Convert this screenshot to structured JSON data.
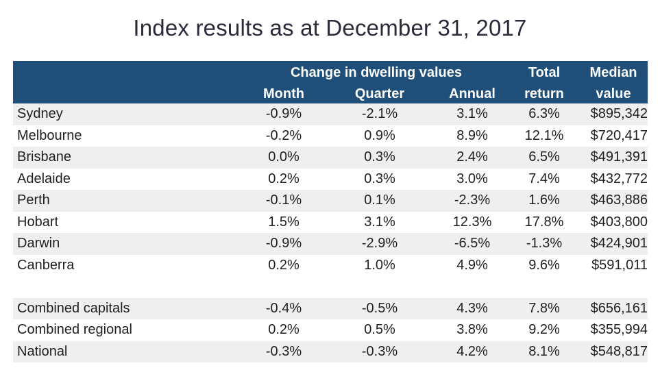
{
  "title": "Index results as at December 31, 2017",
  "header": {
    "group": "Change in dwelling values",
    "month": "Month",
    "quarter": "Quarter",
    "annual": "Annual",
    "total_1": "Total",
    "total_2": "return",
    "median_1": "Median",
    "median_2": "value"
  },
  "chart_data": {
    "type": "table",
    "title": "Index results as at December 31, 2017",
    "columns": [
      "",
      "Month",
      "Quarter",
      "Annual",
      "Total return",
      "Median value"
    ],
    "rows": [
      [
        "Sydney",
        "-0.9%",
        "-2.1%",
        "3.1%",
        "6.3%",
        "$895,342"
      ],
      [
        "Melbourne",
        "-0.2%",
        "0.9%",
        "8.9%",
        "12.1%",
        "$720,417"
      ],
      [
        "Brisbane",
        "0.0%",
        "0.3%",
        "2.4%",
        "6.5%",
        "$491,391"
      ],
      [
        "Adelaide",
        "0.2%",
        "0.3%",
        "3.0%",
        "7.4%",
        "$432,772"
      ],
      [
        "Perth",
        "-0.1%",
        "0.1%",
        "-2.3%",
        "1.6%",
        "$463,886"
      ],
      [
        "Hobart",
        "1.5%",
        "3.1%",
        "12.3%",
        "17.8%",
        "$403,800"
      ],
      [
        "Darwin",
        "-0.9%",
        "-2.9%",
        "-6.5%",
        "-1.3%",
        "$424,901"
      ],
      [
        "Canberra",
        "0.2%",
        "1.0%",
        "4.9%",
        "9.6%",
        "$591,011"
      ],
      [
        "Combined capitals",
        "-0.4%",
        "-0.5%",
        "4.3%",
        "7.8%",
        "$656,161"
      ],
      [
        "Combined regional",
        "0.2%",
        "0.5%",
        "3.8%",
        "9.2%",
        "$355,994"
      ],
      [
        "National",
        "-0.3%",
        "-0.3%",
        "4.2%",
        "8.1%",
        "$548,817"
      ]
    ]
  }
}
